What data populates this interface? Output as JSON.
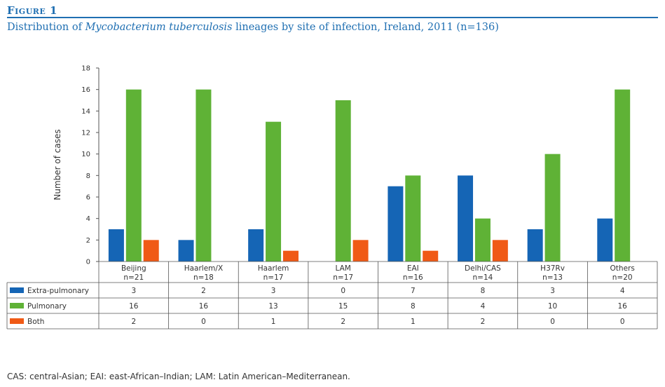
{
  "figure": {
    "label": "Figure 1",
    "title_before": "Distribution of ",
    "title_italic": "Mycobacterium tuberculosis",
    "title_after": " lineages by site of infection, Ireland, 2011 (n=136)"
  },
  "footnote": "CAS: central-Asian; EAI: east-African–Indian; LAM: Latin American–Mediterranean.",
  "chart_data": {
    "type": "bar",
    "ylabel": "Number of cases",
    "ylim": [
      0,
      18
    ],
    "yticks": [
      0,
      2,
      4,
      6,
      8,
      10,
      12,
      14,
      16,
      18
    ],
    "grid": false,
    "legend": "table-left",
    "categories": [
      "Beijing",
      "Haarlem/X",
      "Haarlem",
      "LAM",
      "EAI",
      "Delhi/CAS",
      "H37Rv",
      "Others"
    ],
    "category_n": [
      "n=21",
      "n=18",
      "n=17",
      "n=17",
      "n=16",
      "n=14",
      "n=13",
      "n=20"
    ],
    "series": [
      {
        "name": "Extra-pulmonary",
        "color": "#1565b5",
        "values": [
          3,
          2,
          3,
          0,
          7,
          8,
          3,
          4
        ]
      },
      {
        "name": "Pulmonary",
        "color": "#5fb236",
        "values": [
          16,
          16,
          13,
          15,
          8,
          4,
          10,
          16
        ]
      },
      {
        "name": "Both",
        "color": "#f05a16",
        "values": [
          2,
          0,
          1,
          2,
          1,
          2,
          0,
          0
        ]
      }
    ]
  }
}
